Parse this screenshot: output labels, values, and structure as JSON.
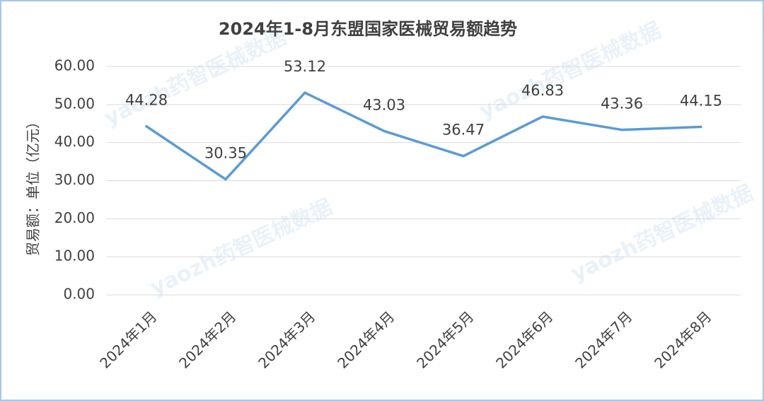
{
  "chart_data": {
    "type": "line",
    "title": "2024年1-8月东盟国家医械贸易额趋势",
    "y_label": "贸易额：单位（亿元）",
    "watermark": "yaozh药智医械数据",
    "categories": [
      "2024年1月",
      "2024年2月",
      "2024年3月",
      "2024年4月",
      "2024年5月",
      "2024年6月",
      "2024年7月",
      "2024年8月"
    ],
    "values": [
      44.28,
      30.35,
      53.12,
      43.03,
      36.47,
      46.83,
      43.36,
      44.15
    ],
    "color": "#5b9bd5",
    "ylim": [
      0,
      60
    ],
    "yticks": [
      {
        "value": 0,
        "label": "0.00"
      },
      {
        "value": 10,
        "label": "10.00"
      },
      {
        "value": 20,
        "label": "20.00"
      },
      {
        "value": 30,
        "label": "30.00"
      },
      {
        "value": 40,
        "label": "40.00"
      },
      {
        "value": 50,
        "label": "50.00"
      },
      {
        "value": 60,
        "label": "60.00"
      }
    ],
    "grid": true
  }
}
